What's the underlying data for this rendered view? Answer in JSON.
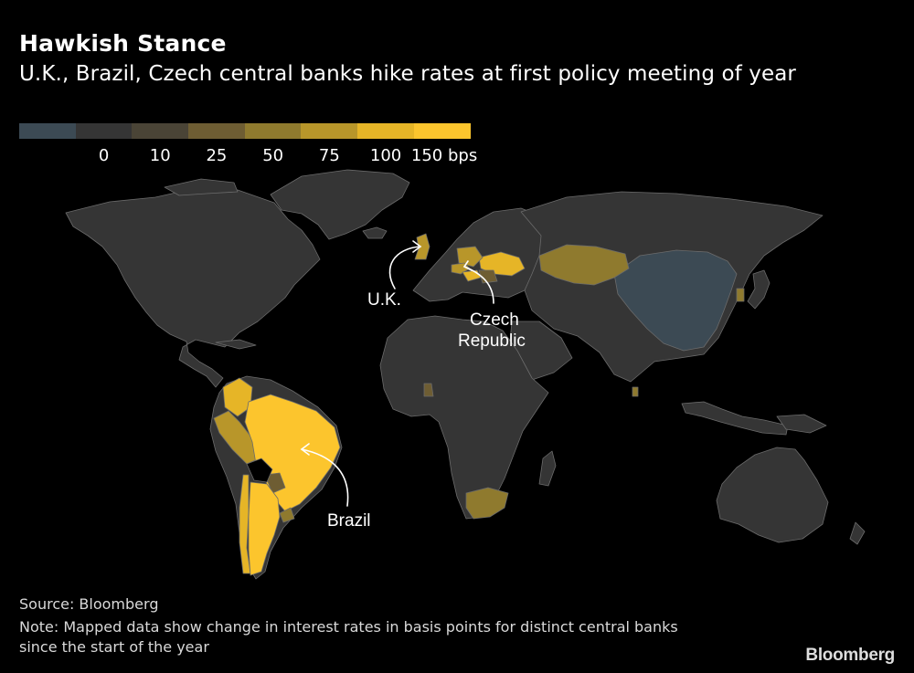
{
  "title": "Hawkish Stance",
  "subtitle": "U.K., Brazil, Czech central banks hike rates at first policy meeting of year",
  "legend": {
    "colors": [
      "#3c4a54",
      "#353535",
      "#4a4436",
      "#6e5d33",
      "#8f7a2e",
      "#b8962a",
      "#e6b527",
      "#fcc52d"
    ],
    "ticks": [
      "0",
      "10",
      "25",
      "50",
      "75",
      "100",
      "150 bps"
    ]
  },
  "colors": {
    "background": "#000000",
    "land_default": "#353535",
    "border": "#6b6b6b",
    "china": "#3c4a54"
  },
  "annotations": {
    "uk": "U.K.",
    "czech_line1": "Czech",
    "czech_line2": "Republic",
    "brazil": "Brazil"
  },
  "chart_data": {
    "type": "choropleth",
    "value_unit": "bps",
    "bins": [
      "<0",
      "0",
      "10",
      "25",
      "50",
      "75",
      "100",
      "150"
    ],
    "regions": [
      {
        "name": "Brazil",
        "bin": "150"
      },
      {
        "name": "Argentina",
        "bin": "150"
      },
      {
        "name": "Colombia",
        "bin": "100"
      },
      {
        "name": "Peru",
        "bin": "75"
      },
      {
        "name": "Chile",
        "bin": "100"
      },
      {
        "name": "Paraguay",
        "bin": "25"
      },
      {
        "name": "Uruguay",
        "bin": "50"
      },
      {
        "name": "United Kingdom",
        "bin": "75"
      },
      {
        "name": "Czech Republic",
        "bin": "75"
      },
      {
        "name": "Poland",
        "bin": "50"
      },
      {
        "name": "Hungary",
        "bin": "100"
      },
      {
        "name": "Romania",
        "bin": "25"
      },
      {
        "name": "Ukraine",
        "bin": "100"
      },
      {
        "name": "Kazakhstan",
        "bin": "75"
      },
      {
        "name": "Iceland",
        "bin": "50"
      },
      {
        "name": "Ghana",
        "bin": "25"
      },
      {
        "name": "South Africa",
        "bin": "50"
      },
      {
        "name": "South Korea",
        "bin": "50"
      },
      {
        "name": "Sri Lanka",
        "bin": "50"
      },
      {
        "name": "China",
        "bin": "<0"
      }
    ]
  },
  "source": "Source: Bloomberg",
  "note": "Note: Mapped data show change in interest rates in basis points for distinct central banks since the start of the year",
  "brand": "Bloomberg"
}
